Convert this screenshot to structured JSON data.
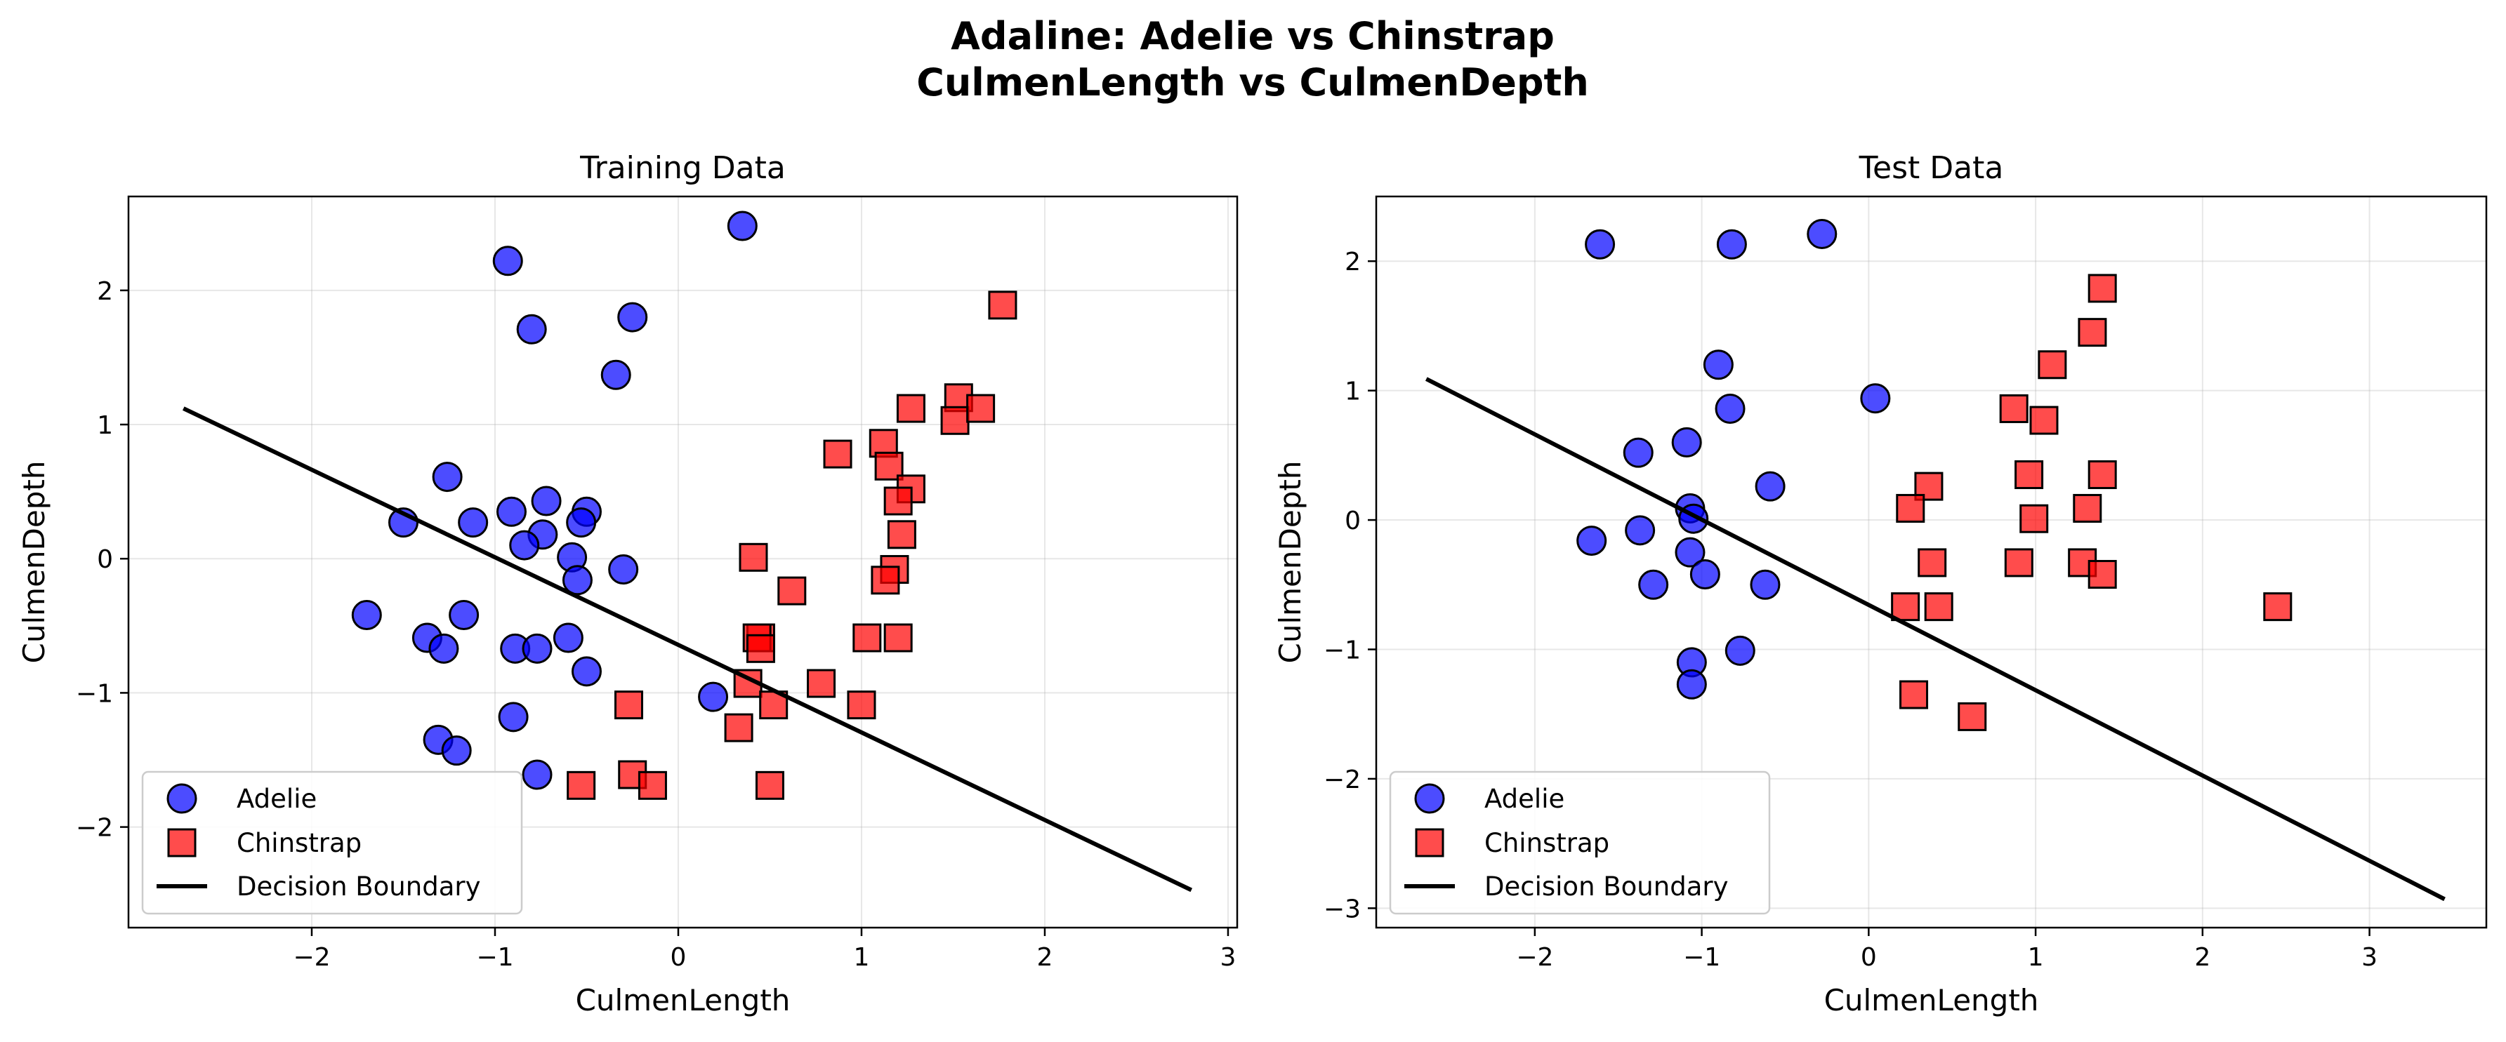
{
  "figure": {
    "title_line1": "Adaline: Adelie vs Chinstrap",
    "title_line2": "CulmenLength vs CulmenDepth"
  },
  "colors": {
    "adelie": "#0000ff",
    "chinstrap": "#ff0000",
    "boundary": "#000000"
  },
  "chart_data": [
    {
      "type": "scatter",
      "title": "Training Data",
      "xlabel": "CulmenLength",
      "ylabel": "CulmenDepth",
      "xlim": [
        -3.0,
        3.05
      ],
      "ylim": [
        -2.75,
        2.7
      ],
      "xticks": [
        -2,
        -1,
        0,
        1,
        2,
        3
      ],
      "yticks": [
        -2,
        -1,
        0,
        1,
        2
      ],
      "grid": true,
      "legend_position": "lower-left",
      "series": [
        {
          "name": "Adelie",
          "marker": "circle",
          "color": "#0000ff",
          "points": [
            [
              -0.93,
              2.22
            ],
            [
              0.35,
              2.48
            ],
            [
              -0.25,
              1.8
            ],
            [
              -0.8,
              1.71
            ],
            [
              -0.34,
              1.37
            ],
            [
              -1.26,
              0.61
            ],
            [
              -1.5,
              0.27
            ],
            [
              -1.12,
              0.27
            ],
            [
              -0.91,
              0.35
            ],
            [
              -0.72,
              0.43
            ],
            [
              -0.74,
              0.18
            ],
            [
              -0.84,
              0.1
            ],
            [
              -0.5,
              0.35
            ],
            [
              -0.53,
              0.27
            ],
            [
              -0.58,
              0.01
            ],
            [
              -0.55,
              -0.16
            ],
            [
              -0.3,
              -0.08
            ],
            [
              -1.7,
              -0.42
            ],
            [
              -1.37,
              -0.59
            ],
            [
              -1.28,
              -0.67
            ],
            [
              -1.17,
              -0.42
            ],
            [
              -0.89,
              -0.67
            ],
            [
              -0.77,
              -0.67
            ],
            [
              -0.6,
              -0.59
            ],
            [
              -0.5,
              -0.84
            ],
            [
              -0.9,
              -1.18
            ],
            [
              -1.31,
              -1.35
            ],
            [
              -1.21,
              -1.43
            ],
            [
              -0.77,
              -1.61
            ],
            [
              0.19,
              -1.03
            ]
          ]
        },
        {
          "name": "Chinstrap",
          "marker": "square",
          "color": "#ff0000",
          "points": [
            [
              1.77,
              1.89
            ],
            [
              1.53,
              1.2
            ],
            [
              1.51,
              1.03
            ],
            [
              1.65,
              1.12
            ],
            [
              1.27,
              1.12
            ],
            [
              1.12,
              0.86
            ],
            [
              1.15,
              0.69
            ],
            [
              0.87,
              0.78
            ],
            [
              1.27,
              0.52
            ],
            [
              1.2,
              0.43
            ],
            [
              1.22,
              0.18
            ],
            [
              1.18,
              -0.08
            ],
            [
              1.13,
              -0.16
            ],
            [
              0.41,
              0.01
            ],
            [
              0.62,
              -0.24
            ],
            [
              0.45,
              -0.59
            ],
            [
              0.43,
              -0.59
            ],
            [
              0.45,
              -0.67
            ],
            [
              1.03,
              -0.59
            ],
            [
              1.2,
              -0.59
            ],
            [
              0.38,
              -0.93
            ],
            [
              0.78,
              -0.93
            ],
            [
              0.52,
              -1.09
            ],
            [
              1.0,
              -1.09
            ],
            [
              -0.27,
              -1.09
            ],
            [
              0.33,
              -1.26
            ],
            [
              -0.25,
              -1.61
            ],
            [
              -0.14,
              -1.69
            ],
            [
              -0.53,
              -1.69
            ],
            [
              0.5,
              -1.69
            ]
          ]
        },
        {
          "name": "Decision Boundary",
          "type": "line",
          "color": "#000000",
          "points": [
            [
              -2.7,
              1.12
            ],
            [
              2.8,
              -2.47
            ]
          ]
        }
      ]
    },
    {
      "type": "scatter",
      "title": "Test Data",
      "xlabel": "CulmenLength",
      "ylabel": "CulmenDepth",
      "xlim": [
        -2.95,
        3.7
      ],
      "ylim": [
        -3.15,
        2.5
      ],
      "xticks": [
        -2,
        -1,
        0,
        1,
        2,
        3
      ],
      "yticks": [
        -3,
        -2,
        -1,
        0,
        1,
        2
      ],
      "grid": true,
      "legend_position": "lower-left",
      "series": [
        {
          "name": "Adelie",
          "marker": "circle",
          "color": "#0000ff",
          "points": [
            [
              -1.61,
              2.13
            ],
            [
              -0.82,
              2.13
            ],
            [
              -0.28,
              2.21
            ],
            [
              -0.9,
              1.2
            ],
            [
              -0.83,
              0.86
            ],
            [
              0.04,
              0.94
            ],
            [
              -1.38,
              0.52
            ],
            [
              -1.09,
              0.6
            ],
            [
              -0.59,
              0.26
            ],
            [
              -1.07,
              0.09
            ],
            [
              -1.05,
              0.01
            ],
            [
              -1.66,
              -0.16
            ],
            [
              -1.37,
              -0.08
            ],
            [
              -1.07,
              -0.25
            ],
            [
              -0.98,
              -0.42
            ],
            [
              -1.29,
              -0.5
            ],
            [
              -0.62,
              -0.5
            ],
            [
              -0.77,
              -1.01
            ],
            [
              -1.06,
              -1.1
            ],
            [
              -1.06,
              -1.27
            ]
          ]
        },
        {
          "name": "Chinstrap",
          "marker": "square",
          "color": "#ff0000",
          "points": [
            [
              1.4,
              1.79
            ],
            [
              1.34,
              1.45
            ],
            [
              1.1,
              1.2
            ],
            [
              0.87,
              0.86
            ],
            [
              1.05,
              0.77
            ],
            [
              0.96,
              0.35
            ],
            [
              1.4,
              0.35
            ],
            [
              0.36,
              0.26
            ],
            [
              0.25,
              0.09
            ],
            [
              1.31,
              0.09
            ],
            [
              0.99,
              0.01
            ],
            [
              0.38,
              -0.33
            ],
            [
              0.9,
              -0.33
            ],
            [
              1.28,
              -0.33
            ],
            [
              1.4,
              -0.42
            ],
            [
              0.22,
              -0.67
            ],
            [
              0.42,
              -0.67
            ],
            [
              2.45,
              -0.67
            ],
            [
              0.27,
              -1.35
            ],
            [
              0.62,
              -1.52
            ]
          ]
        },
        {
          "name": "Decision Boundary",
          "type": "line",
          "color": "#000000",
          "points": [
            [
              -2.65,
              1.09
            ],
            [
              3.45,
              -2.93
            ]
          ]
        }
      ]
    }
  ]
}
